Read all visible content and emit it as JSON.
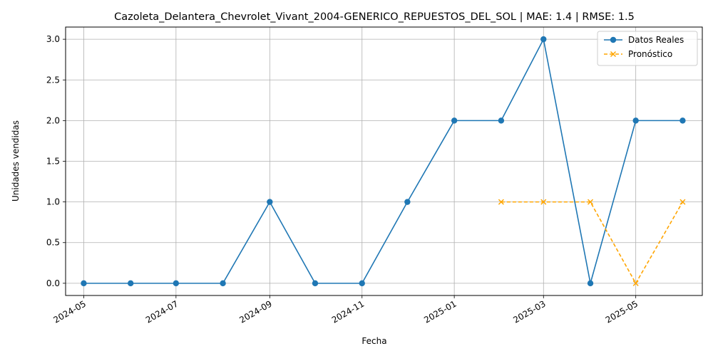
{
  "chart_data": {
    "type": "line",
    "title": "Cazoleta_Delantera_Chevrolet_Vivant_2004-GENERICO_REPUESTOS_DEL_SOL | MAE: 1.4 | RMSE: 1.5",
    "xlabel": "Fecha",
    "ylabel": "Unidades vendidas",
    "ylim": [
      -0.15,
      3.15
    ],
    "grid": true,
    "legend_position": "top-right",
    "x_ticks": [
      "2024-05",
      "2024-07",
      "2024-09",
      "2024-11",
      "2025-01",
      "2025-03",
      "2025-05"
    ],
    "y_ticks": [
      "0.0",
      "0.5",
      "1.0",
      "1.5",
      "2.0",
      "2.5",
      "3.0"
    ],
    "series": [
      {
        "name": "Datos Reales",
        "color": "#1f77b4",
        "linestyle": "solid",
        "marker": "circle",
        "x": [
          "2024-05-01",
          "2024-06-01",
          "2024-07-01",
          "2024-08-01",
          "2024-09-01",
          "2024-10-01",
          "2024-11-01",
          "2024-12-01",
          "2025-01-01",
          "2025-02-01",
          "2025-03-01",
          "2025-04-01",
          "2025-05-01",
          "2025-06-01"
        ],
        "values": [
          0,
          0,
          0,
          0,
          1,
          0,
          0,
          1,
          2,
          2,
          3,
          0,
          2,
          2
        ]
      },
      {
        "name": "Pronóstico",
        "color": "#ffa500",
        "linestyle": "dashed",
        "marker": "x",
        "x": [
          "2025-02-01",
          "2025-03-01",
          "2025-04-01",
          "2025-05-01",
          "2025-06-01"
        ],
        "values": [
          1,
          1,
          1,
          0,
          1
        ]
      }
    ]
  }
}
